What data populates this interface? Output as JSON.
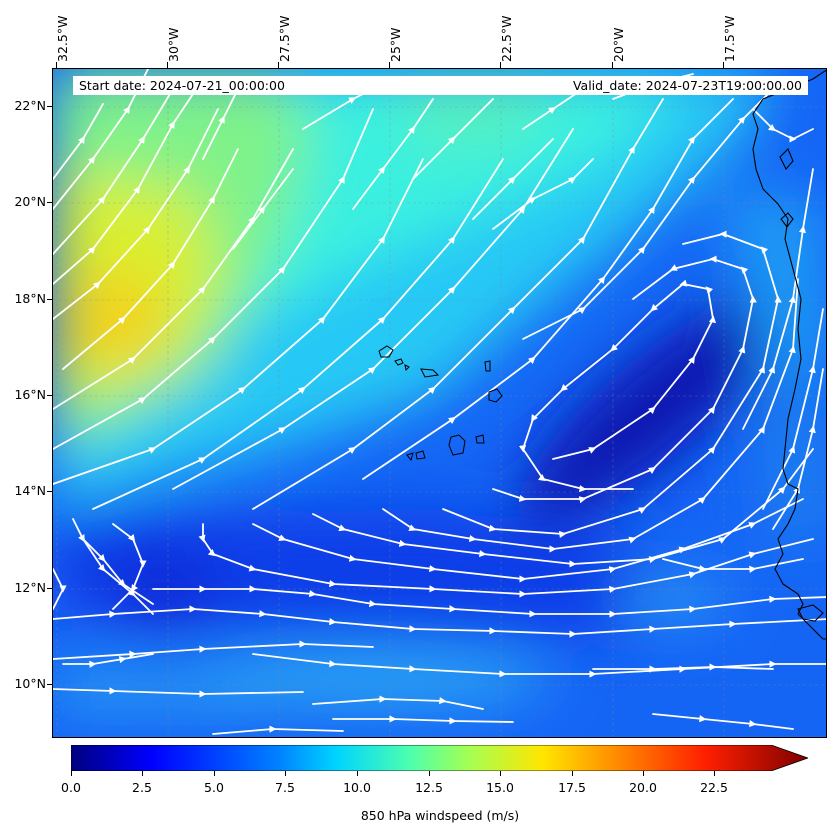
{
  "map": {
    "start_date_text": "Start date: 2024-07-21_00:00:00",
    "valid_date_text": "Valid_date: 2024-07-23T19:00:00.00",
    "lon_ticks": [
      {
        "label": "32.5°W"
      },
      {
        "label": "30°W"
      },
      {
        "label": "27.5°W"
      },
      {
        "label": "25°W"
      },
      {
        "label": "22.5°W"
      },
      {
        "label": "20°W"
      },
      {
        "label": "17.5°W"
      }
    ],
    "lat_ticks": [
      {
        "label": "22°N"
      },
      {
        "label": "20°N"
      },
      {
        "label": "18°N"
      },
      {
        "label": "16°N"
      },
      {
        "label": "14°N"
      },
      {
        "label": "12°N"
      },
      {
        "label": "10°N"
      }
    ],
    "streamline_color": "#ffffff",
    "coastline_color": "#000000"
  },
  "colorbar": {
    "label": "850 hPa windspeed (m/s)",
    "ticks": [
      "0.0",
      "2.5",
      "5.0",
      "7.5",
      "10.0",
      "12.5",
      "15.0",
      "17.5",
      "20.0",
      "22.5"
    ],
    "range": [
      0,
      25
    ],
    "extend": "max",
    "colormap": "jet"
  }
}
